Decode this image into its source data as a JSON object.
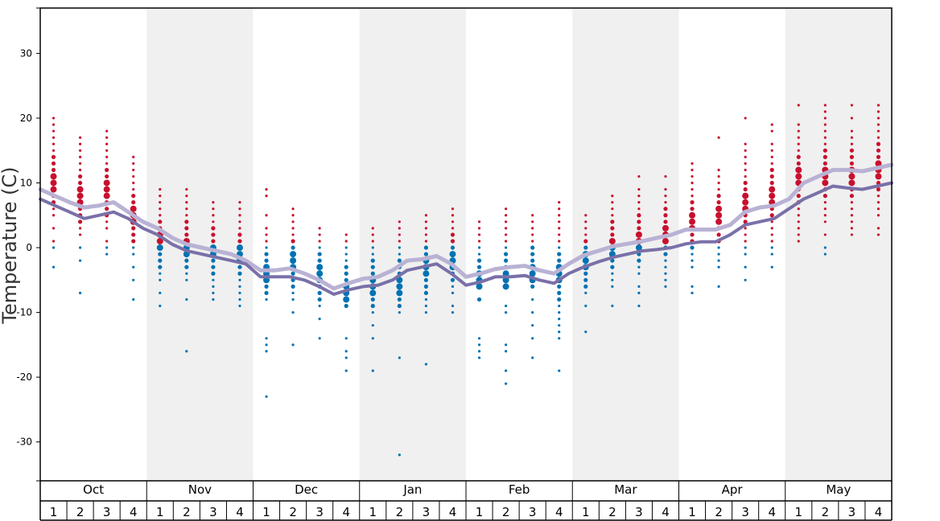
{
  "chart_data": {
    "type": "scatter",
    "ylabel": "Temperature (C)",
    "ylim": [
      -36,
      37
    ],
    "yticks": [
      30,
      20,
      10,
      0,
      -10,
      -20,
      -30
    ],
    "months": [
      "Oct",
      "Nov",
      "Dec",
      "Jan",
      "Feb",
      "Mar",
      "Apr",
      "May"
    ],
    "weeks": [
      "1",
      "2",
      "3",
      "4"
    ],
    "colors": {
      "warm": "#c8102e",
      "cold": "#0072b2",
      "line_light": "#b9b2d4",
      "line_dark": "#7a70a8",
      "shade": "#f0f0f0"
    },
    "series": [
      {
        "name": "upper-line",
        "values": [
          9,
          8,
          7,
          6.2,
          6.5,
          7,
          5.5,
          4,
          3,
          1.5,
          0.5,
          0,
          -0.5,
          -1,
          -2,
          -3.5,
          -3.5,
          -3.2,
          -4,
          -5,
          -6.3,
          -5.5,
          -4.8,
          -4.5,
          -3.5,
          -2,
          -1.8,
          -1.3,
          -2.5,
          -4.5,
          -4,
          -3.3,
          -3,
          -2.8,
          -3.5,
          -4,
          -2.5,
          -1.2,
          -0.5,
          0.2,
          0.6,
          1,
          1.5,
          2,
          2.8,
          2.8,
          2.8,
          3.5,
          5.5,
          6.2,
          6.5,
          7.5,
          10,
          11,
          12,
          12,
          11.8,
          12.3,
          12.8
        ]
      },
      {
        "name": "lower-line",
        "values": [
          7.5,
          6.5,
          5.5,
          4.5,
          5,
          5.5,
          4.5,
          3,
          2,
          0.5,
          -0.5,
          -1,
          -1.5,
          -2,
          -2.5,
          -4.5,
          -4.5,
          -4.5,
          -5,
          -6,
          -7.2,
          -6.5,
          -6,
          -5.8,
          -5,
          -3.5,
          -3,
          -2.5,
          -4,
          -5.8,
          -5.3,
          -4.5,
          -4.5,
          -4.3,
          -5,
          -5.5,
          -4,
          -3,
          -2.2,
          -1.5,
          -1,
          -0.5,
          -0.3,
          0,
          0.6,
          0.9,
          0.9,
          2,
          3.5,
          4,
          4.5,
          6,
          7.5,
          8.5,
          9.5,
          9.2,
          9,
          9.5,
          10
        ]
      }
    ],
    "observations": [
      [
        20,
        19,
        18,
        17,
        16,
        15,
        14,
        13,
        12,
        11,
        10,
        9,
        8,
        7,
        6,
        5,
        3,
        1,
        0,
        -3
      ],
      [
        17,
        16,
        15,
        14,
        13,
        12,
        11,
        10,
        9,
        8,
        7,
        6,
        5,
        4,
        3,
        2,
        0,
        -2,
        -7
      ],
      [
        18,
        17,
        16,
        15,
        14,
        13,
        12,
        11,
        10,
        9,
        8,
        7,
        6,
        5,
        4,
        3,
        1,
        0,
        -1
      ],
      [
        14,
        13,
        12,
        11,
        10,
        9,
        8,
        7,
        6,
        5,
        4,
        3,
        2,
        1,
        0,
        -1,
        -3,
        -5,
        -8
      ],
      [
        9,
        8,
        7,
        6,
        5,
        4,
        3,
        2,
        1,
        0,
        -1,
        -2,
        -3,
        -4,
        -5,
        -7,
        -9
      ],
      [
        9,
        8,
        7,
        6,
        5,
        4,
        3,
        2,
        1,
        0,
        -1,
        -2,
        -3,
        -4,
        -5,
        -8,
        -16
      ],
      [
        7,
        6,
        5,
        4,
        3,
        2,
        1,
        0,
        -1,
        -2,
        -3,
        -4,
        -5,
        -6,
        -7,
        -8
      ],
      [
        7,
        6,
        5,
        4,
        3,
        2,
        1,
        0,
        -1,
        -2,
        -3,
        -4,
        -5,
        -6,
        -7,
        -8,
        -9
      ],
      [
        9,
        8,
        5,
        3,
        2,
        1,
        0,
        -1,
        -2,
        -3,
        -4,
        -5,
        -6,
        -7,
        -8,
        -14,
        -15,
        -16,
        -23
      ],
      [
        6,
        5,
        4,
        3,
        2,
        1,
        0,
        -1,
        -2,
        -3,
        -4,
        -5,
        -6,
        -7,
        -8,
        -10,
        -15
      ],
      [
        3,
        2,
        1,
        0,
        -1,
        -2,
        -3,
        -4,
        -5,
        -6,
        -7,
        -8,
        -9,
        -11,
        -14
      ],
      [
        2,
        1,
        0,
        -1,
        -2,
        -3,
        -4,
        -5,
        -6,
        -7,
        -8,
        -9,
        -14,
        -16,
        -17,
        -19
      ],
      [
        3,
        2,
        1,
        0,
        -1,
        -2,
        -3,
        -4,
        -5,
        -6,
        -7,
        -8,
        -9,
        -10,
        -12,
        -14,
        -19
      ],
      [
        4,
        3,
        2,
        1,
        0,
        -1,
        -2,
        -3,
        -4,
        -5,
        -6,
        -7,
        -8,
        -9,
        -10,
        -17,
        -32
      ],
      [
        5,
        4,
        3,
        2,
        1,
        0,
        -1,
        -2,
        -3,
        -4,
        -5,
        -6,
        -7,
        -8,
        -9,
        -10,
        -18
      ],
      [
        6,
        5,
        4,
        3,
        2,
        1,
        0,
        -1,
        -2,
        -3,
        -4,
        -5,
        -6,
        -7,
        -9,
        -10
      ],
      [
        4,
        3,
        2,
        1,
        0,
        -1,
        -2,
        -3,
        -4,
        -5,
        -6,
        -8,
        -14,
        -15,
        -16,
        -17
      ],
      [
        6,
        5,
        4,
        3,
        2,
        1,
        0,
        -1,
        -2,
        -3,
        -4,
        -5,
        -6,
        -9,
        -10,
        -15,
        -16,
        -19,
        -21
      ],
      [
        5,
        4,
        3,
        2,
        1,
        0,
        -1,
        -2,
        -3,
        -4,
        -5,
        -6,
        -8,
        -10,
        -12,
        -14,
        -17
      ],
      [
        7,
        6,
        5,
        4,
        3,
        2,
        1,
        0,
        -1,
        -2,
        -3,
        -4,
        -5,
        -6,
        -7,
        -8,
        -9,
        -10,
        -11,
        -12,
        -13,
        -14,
        -19
      ],
      [
        5,
        4,
        3,
        2,
        1,
        0,
        -1,
        -2,
        -3,
        -4,
        -5,
        -6,
        -7,
        -9,
        -13
      ],
      [
        8,
        7,
        6,
        5,
        4,
        3,
        2,
        1,
        0,
        -1,
        -2,
        -3,
        -4,
        -5,
        -6,
        -9
      ],
      [
        11,
        9,
        8,
        7,
        6,
        5,
        4,
        3,
        2,
        1,
        0,
        -1,
        -2,
        -3,
        -4,
        -6,
        -7,
        -9
      ],
      [
        11,
        9,
        8,
        7,
        6,
        5,
        4,
        3,
        2,
        1,
        0,
        -1,
        -2,
        -3,
        -4,
        -5,
        -6
      ],
      [
        13,
        12,
        11,
        10,
        9,
        8,
        7,
        6,
        5,
        4,
        3,
        2,
        1,
        0,
        -1,
        -2,
        -3,
        -6,
        -7
      ],
      [
        17,
        12,
        11,
        10,
        9,
        8,
        7,
        6,
        5,
        4,
        3,
        2,
        1,
        0,
        -1,
        -2,
        -3,
        -6
      ],
      [
        20,
        16,
        15,
        14,
        13,
        12,
        11,
        10,
        9,
        8,
        7,
        6,
        5,
        4,
        3,
        2,
        1,
        0,
        -1,
        -3,
        -5
      ],
      [
        19,
        18,
        16,
        15,
        14,
        13,
        12,
        11,
        10,
        9,
        8,
        7,
        6,
        5,
        4,
        3,
        2,
        1,
        0,
        -1,
        -3
      ],
      [
        22,
        19,
        18,
        17,
        16,
        15,
        14,
        13,
        12,
        11,
        10,
        9,
        8,
        7,
        6,
        5,
        4,
        3,
        2,
        1
      ],
      [
        22,
        21,
        20,
        19,
        18,
        17,
        16,
        15,
        14,
        13,
        12,
        11,
        10,
        9,
        8,
        7,
        6,
        5,
        4,
        2,
        0,
        -1
      ],
      [
        22,
        20,
        18,
        17,
        16,
        15,
        14,
        13,
        12,
        11,
        10,
        9,
        8,
        7,
        6,
        5,
        4,
        3,
        2
      ],
      [
        22,
        21,
        20,
        19,
        18,
        17,
        16,
        15,
        14,
        13,
        12,
        11,
        10,
        9,
        8,
        7,
        6,
        5,
        3,
        2
      ]
    ]
  }
}
